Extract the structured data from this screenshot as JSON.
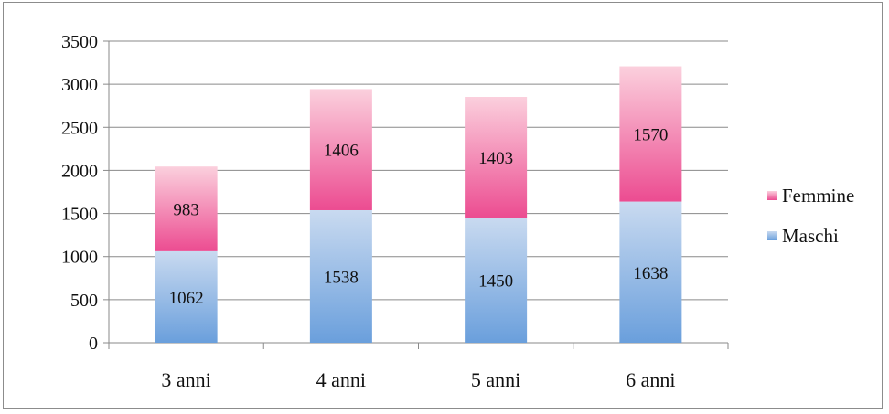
{
  "chart_data": {
    "type": "bar",
    "stacked": true,
    "categories": [
      "3 anni",
      "4 anni",
      "5 anni",
      "6 anni"
    ],
    "series": [
      {
        "name": "Maschi",
        "values": [
          1062,
          1538,
          1450,
          1638
        ],
        "color_top": "#c9daf0",
        "color_bottom": "#6a9fdc"
      },
      {
        "name": "Femmine",
        "values": [
          983,
          1406,
          1403,
          1570
        ],
        "color_top": "#fbd0dd",
        "color_bottom": "#ec4c91"
      }
    ],
    "yticks": [
      "0",
      "500",
      "1000",
      "1500",
      "2000",
      "2500",
      "3000",
      "3500"
    ],
    "ylim": [
      0,
      3500
    ],
    "grid": true,
    "legend_position": "right",
    "data_labels": true
  }
}
